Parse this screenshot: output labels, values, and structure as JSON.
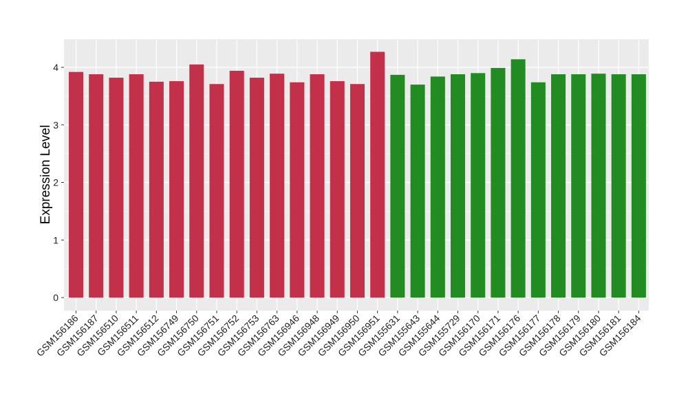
{
  "chart_data": {
    "type": "bar",
    "title": "",
    "xlabel": "",
    "ylabel": "Expression Level",
    "ylim": [
      0,
      4.5
    ],
    "yticks": [
      0,
      1,
      2,
      3,
      4
    ],
    "grid": true,
    "categories": [
      "GSM156186",
      "GSM156187",
      "GSM156510",
      "GSM156511",
      "GSM156512",
      "GSM156749",
      "GSM156750",
      "GSM156751",
      "GSM156752",
      "GSM156753",
      "GSM156763",
      "GSM156946",
      "GSM156948",
      "GSM156949",
      "GSM156950",
      "GSM156951",
      "GSM155631",
      "GSM155643",
      "GSM155644",
      "GSM155729",
      "GSM156170",
      "GSM156171",
      "GSM156176",
      "GSM156177",
      "GSM156178",
      "GSM156179",
      "GSM156180",
      "GSM156181",
      "GSM156184"
    ],
    "values": [
      3.92,
      3.88,
      3.82,
      3.88,
      3.75,
      3.76,
      4.05,
      3.71,
      3.94,
      3.82,
      3.89,
      3.74,
      3.88,
      3.76,
      3.71,
      4.27,
      3.87,
      3.7,
      3.84,
      3.88,
      3.9,
      3.99,
      4.14,
      3.74,
      3.88,
      3.88,
      3.89,
      3.88,
      3.88
    ],
    "groups": [
      0,
      0,
      0,
      0,
      0,
      0,
      0,
      0,
      0,
      0,
      0,
      0,
      0,
      0,
      0,
      0,
      1,
      1,
      1,
      1,
      1,
      1,
      1,
      1,
      1,
      1,
      1,
      1,
      1
    ],
    "group_colors": [
      "#C3304A",
      "#228B22"
    ],
    "panel_background": "#EBEBEB"
  }
}
